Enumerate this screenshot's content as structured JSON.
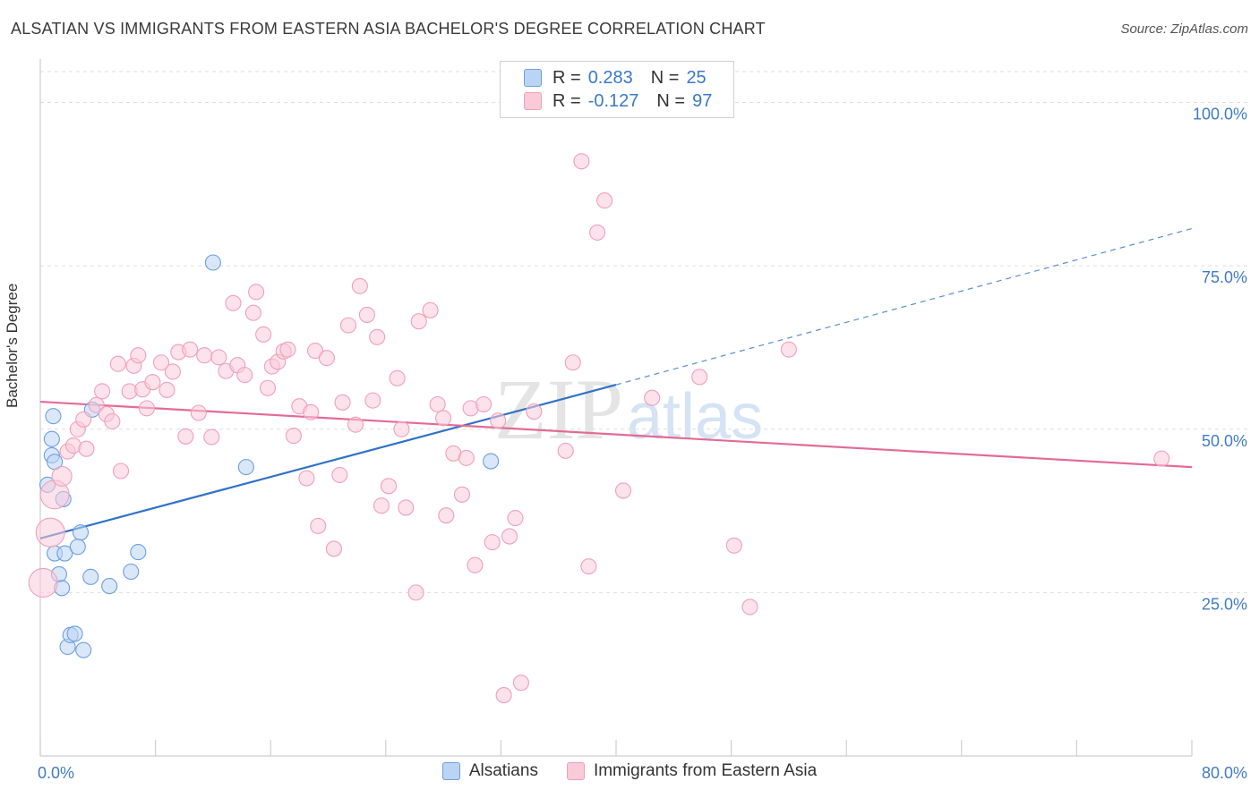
{
  "title": "ALSATIAN VS IMMIGRANTS FROM EASTERN ASIA BACHELOR'S DEGREE CORRELATION CHART",
  "source": "Source: ZipAtlas.com",
  "watermark": "ZIPatlas",
  "legend": {
    "rows": [
      {
        "r_label": "R =",
        "r_value": "0.283",
        "n_label": "N =",
        "n_value": "25"
      },
      {
        "r_label": "R =",
        "r_value": "-0.127",
        "n_label": "N =",
        "n_value": "97"
      }
    ]
  },
  "chart_data": {
    "type": "scatter",
    "xlabel": "",
    "ylabel": "Bachelor's Degree",
    "xlim": [
      0,
      80
    ],
    "ylim": [
      0,
      105
    ],
    "x_tick_labels": [
      "0.0%",
      "80.0%"
    ],
    "y_ticks": [
      25,
      50,
      75,
      100
    ],
    "y_tick_labels": [
      "25.0%",
      "50.0%",
      "75.0%",
      "100.0%"
    ],
    "grid": true,
    "legend_position": "top-center",
    "colors": {
      "alsatians": "#6a9fe0",
      "eastern_asia": "#f0a0b8",
      "alsatians_line": "#2f72c8",
      "eastern_asia_line": "#e36b94"
    },
    "series": [
      {
        "name": "Alsatians",
        "points": [
          [
            0.5,
            41.5
          ],
          [
            0.8,
            48.5
          ],
          [
            0.8,
            46
          ],
          [
            0.9,
            52
          ],
          [
            1.0,
            45
          ],
          [
            1.6,
            39.3
          ],
          [
            1.0,
            31
          ],
          [
            1.7,
            31
          ],
          [
            2.8,
            34.2
          ],
          [
            2.6,
            32
          ],
          [
            1.3,
            27.8
          ],
          [
            1.5,
            25.7
          ],
          [
            3.5,
            27.4
          ],
          [
            4.8,
            26
          ],
          [
            6.3,
            28.2
          ],
          [
            6.8,
            31.2
          ],
          [
            1.9,
            16.7
          ],
          [
            2.1,
            18.5
          ],
          [
            2.4,
            18.7
          ],
          [
            3.0,
            16.2
          ],
          [
            3.6,
            53
          ],
          [
            12.0,
            75.5
          ],
          [
            14.3,
            44.2
          ],
          [
            31.3,
            45.1
          ]
        ]
      },
      {
        "name": "Immigrants from Eastern Asia",
        "points": [
          [
            0.2,
            26.5
          ],
          [
            0.7,
            34.2
          ],
          [
            1.0,
            40
          ],
          [
            1.5,
            42.8
          ],
          [
            1.9,
            46.6
          ],
          [
            2.3,
            47.5
          ],
          [
            2.6,
            50
          ],
          [
            3.0,
            51.5
          ],
          [
            3.2,
            47
          ],
          [
            3.9,
            53.7
          ],
          [
            4.3,
            55.8
          ],
          [
            4.6,
            52.3
          ],
          [
            5.0,
            51.2
          ],
          [
            5.4,
            60
          ],
          [
            5.6,
            43.6
          ],
          [
            6.2,
            55.8
          ],
          [
            6.5,
            59.7
          ],
          [
            6.8,
            61.3
          ],
          [
            7.1,
            56.1
          ],
          [
            7.4,
            53.2
          ],
          [
            7.8,
            57.2
          ],
          [
            8.4,
            60.2
          ],
          [
            8.8,
            56
          ],
          [
            9.2,
            58.8
          ],
          [
            9.6,
            61.8
          ],
          [
            10.1,
            48.9
          ],
          [
            10.4,
            62.2
          ],
          [
            11.0,
            52.5
          ],
          [
            11.4,
            61.3
          ],
          [
            11.9,
            48.8
          ],
          [
            12.4,
            61
          ],
          [
            12.9,
            58.9
          ],
          [
            13.4,
            69.3
          ],
          [
            13.7,
            59.8
          ],
          [
            14.2,
            58.3
          ],
          [
            14.8,
            67.8
          ],
          [
            15.0,
            71
          ],
          [
            15.5,
            64.5
          ],
          [
            15.8,
            56.3
          ],
          [
            16.1,
            59.6
          ],
          [
            16.5,
            60.3
          ],
          [
            16.9,
            61.9
          ],
          [
            17.2,
            62.2
          ],
          [
            17.6,
            49
          ],
          [
            18.0,
            53.5
          ],
          [
            18.5,
            42.5
          ],
          [
            18.8,
            52.6
          ],
          [
            19.1,
            62
          ],
          [
            19.3,
            35.2
          ],
          [
            19.9,
            60.9
          ],
          [
            20.4,
            31.7
          ],
          [
            20.8,
            43
          ],
          [
            21.0,
            54.1
          ],
          [
            21.4,
            65.9
          ],
          [
            21.9,
            50.7
          ],
          [
            22.2,
            71.9
          ],
          [
            22.7,
            67.5
          ],
          [
            23.1,
            54.4
          ],
          [
            23.4,
            64.1
          ],
          [
            23.7,
            38.3
          ],
          [
            24.2,
            41.3
          ],
          [
            24.8,
            57.8
          ],
          [
            25.1,
            50
          ],
          [
            25.4,
            38
          ],
          [
            26.1,
            25
          ],
          [
            26.3,
            66.5
          ],
          [
            27.1,
            68.2
          ],
          [
            27.6,
            53.8
          ],
          [
            28.0,
            51.7
          ],
          [
            28.2,
            36.8
          ],
          [
            28.7,
            46.3
          ],
          [
            29.3,
            40
          ],
          [
            29.6,
            45.6
          ],
          [
            29.9,
            53.2
          ],
          [
            30.2,
            29.2
          ],
          [
            30.8,
            53.8
          ],
          [
            31.4,
            32.7
          ],
          [
            31.8,
            51.3
          ],
          [
            32.2,
            9.3
          ],
          [
            32.6,
            33.6
          ],
          [
            33.0,
            36.4
          ],
          [
            33.4,
            11.2
          ],
          [
            34.3,
            52.7
          ],
          [
            36.5,
            46.7
          ],
          [
            37.0,
            60.2
          ],
          [
            37.6,
            91
          ],
          [
            38.1,
            29
          ],
          [
            38.7,
            80.1
          ],
          [
            39.2,
            85
          ],
          [
            40.5,
            40.6
          ],
          [
            42.5,
            54.8
          ],
          [
            45.8,
            58
          ],
          [
            48.2,
            32.2
          ],
          [
            49.3,
            22.8
          ],
          [
            52.0,
            62.2
          ],
          [
            77.9,
            45.5
          ]
        ]
      }
    ],
    "trend_lines": [
      {
        "series": "Alsatians",
        "x": [
          0,
          40
        ],
        "y": [
          33.3,
          56.8
        ],
        "dashed_to": [
          80,
          80.7
        ]
      },
      {
        "series": "Immigrants from Eastern Asia",
        "x": [
          0,
          80
        ],
        "y": [
          54.2,
          44.2
        ]
      }
    ]
  },
  "bottom_legend": [
    "Alsatians",
    "Immigrants from Eastern Asia"
  ]
}
